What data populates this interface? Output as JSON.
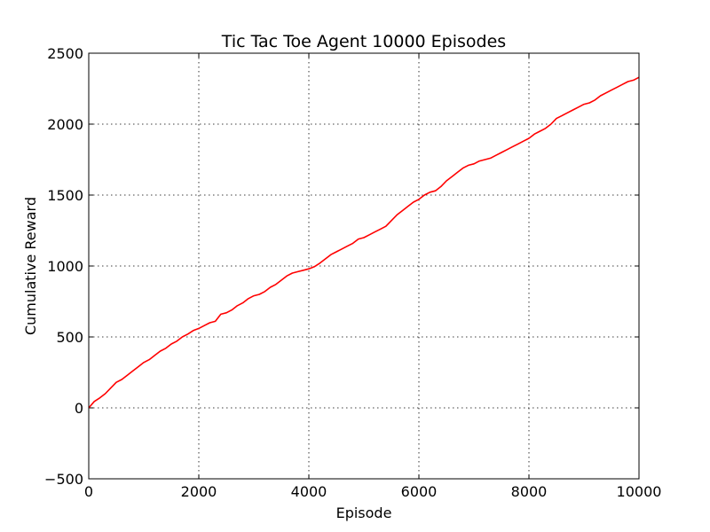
{
  "chart_data": {
    "type": "line",
    "title": "Tic Tac Toe Agent 10000 Episodes",
    "xlabel": "Episode",
    "ylabel": "Cumulative Reward",
    "xlim": [
      0,
      10000
    ],
    "ylim": [
      -500,
      2500
    ],
    "xticks": [
      "0",
      "2000",
      "4000",
      "6000",
      "8000",
      "10000"
    ],
    "yticks": [
      "−500",
      "0",
      "500",
      "1000",
      "1500",
      "2000",
      "2500"
    ],
    "grid": true,
    "series": [
      {
        "color": "#ff0000",
        "x": [
          0,
          100,
          200,
          300,
          400,
          500,
          600,
          700,
          800,
          900,
          1000,
          1100,
          1200,
          1300,
          1400,
          1500,
          1600,
          1700,
          1800,
          1900,
          2000,
          2100,
          2200,
          2300,
          2400,
          2500,
          2600,
          2700,
          2800,
          2900,
          3000,
          3100,
          3200,
          3300,
          3400,
          3500,
          3600,
          3700,
          3800,
          3900,
          4000,
          4100,
          4200,
          4300,
          4400,
          4500,
          4600,
          4700,
          4800,
          4900,
          5000,
          5100,
          5200,
          5300,
          5400,
          5500,
          5600,
          5700,
          5800,
          5900,
          6000,
          6100,
          6200,
          6300,
          6400,
          6500,
          6600,
          6700,
          6800,
          6900,
          7000,
          7100,
          7200,
          7300,
          7400,
          7500,
          7600,
          7700,
          7800,
          7900,
          8000,
          8100,
          8200,
          8300,
          8400,
          8500,
          8600,
          8700,
          8800,
          8900,
          9000,
          9100,
          9200,
          9300,
          9400,
          9500,
          9600,
          9700,
          9800,
          9900,
          10000
        ],
        "y": [
          0,
          45,
          70,
          100,
          140,
          180,
          200,
          230,
          260,
          290,
          320,
          340,
          370,
          400,
          420,
          450,
          470,
          500,
          520,
          545,
          560,
          580,
          600,
          610,
          660,
          670,
          690,
          720,
          740,
          770,
          790,
          800,
          820,
          850,
          870,
          900,
          930,
          950,
          960,
          970,
          980,
          995,
          1020,
          1050,
          1080,
          1100,
          1120,
          1140,
          1160,
          1190,
          1200,
          1220,
          1240,
          1260,
          1280,
          1320,
          1360,
          1390,
          1420,
          1450,
          1470,
          1500,
          1520,
          1530,
          1560,
          1600,
          1630,
          1660,
          1690,
          1710,
          1720,
          1740,
          1750,
          1760,
          1780,
          1800,
          1820,
          1840,
          1860,
          1880,
          1900,
          1930,
          1950,
          1970,
          2000,
          2040,
          2060,
          2080,
          2100,
          2120,
          2140,
          2150,
          2170,
          2200,
          2220,
          2240,
          2260,
          2280,
          2300,
          2310,
          2330
        ]
      }
    ]
  }
}
